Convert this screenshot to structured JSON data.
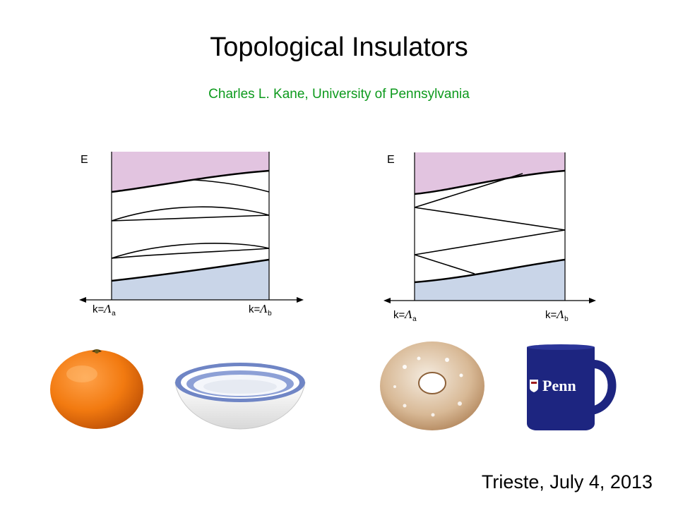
{
  "slide": {
    "title": "Topological Insulators",
    "subtitle": "Charles L. Kane, University of Pennsylvania",
    "footer": "Trieste, July 4, 2013"
  },
  "diagrams": [
    {
      "energy_label": "E",
      "k_left_prefix": "k=",
      "k_left_symbol": "Λ",
      "k_left_sub": "a",
      "k_right_prefix": "k=",
      "k_right_symbol": "Λ",
      "k_right_sub": "b"
    },
    {
      "energy_label": "E",
      "k_left_prefix": "k=",
      "k_left_symbol": "Λ",
      "k_left_sub": "a",
      "k_right_prefix": "k=",
      "k_right_symbol": "Λ",
      "k_right_sub": "b"
    }
  ],
  "colors": {
    "conduction_band": "#e2c4e0",
    "valence_band": "#c9d5e8",
    "subtitle": "#0d9a1d",
    "mug": "#1d2580"
  },
  "objects": [
    "orange-image",
    "bowl-image",
    "donut-image",
    "penn-mug-image"
  ],
  "mug_logo_text": "Penn"
}
